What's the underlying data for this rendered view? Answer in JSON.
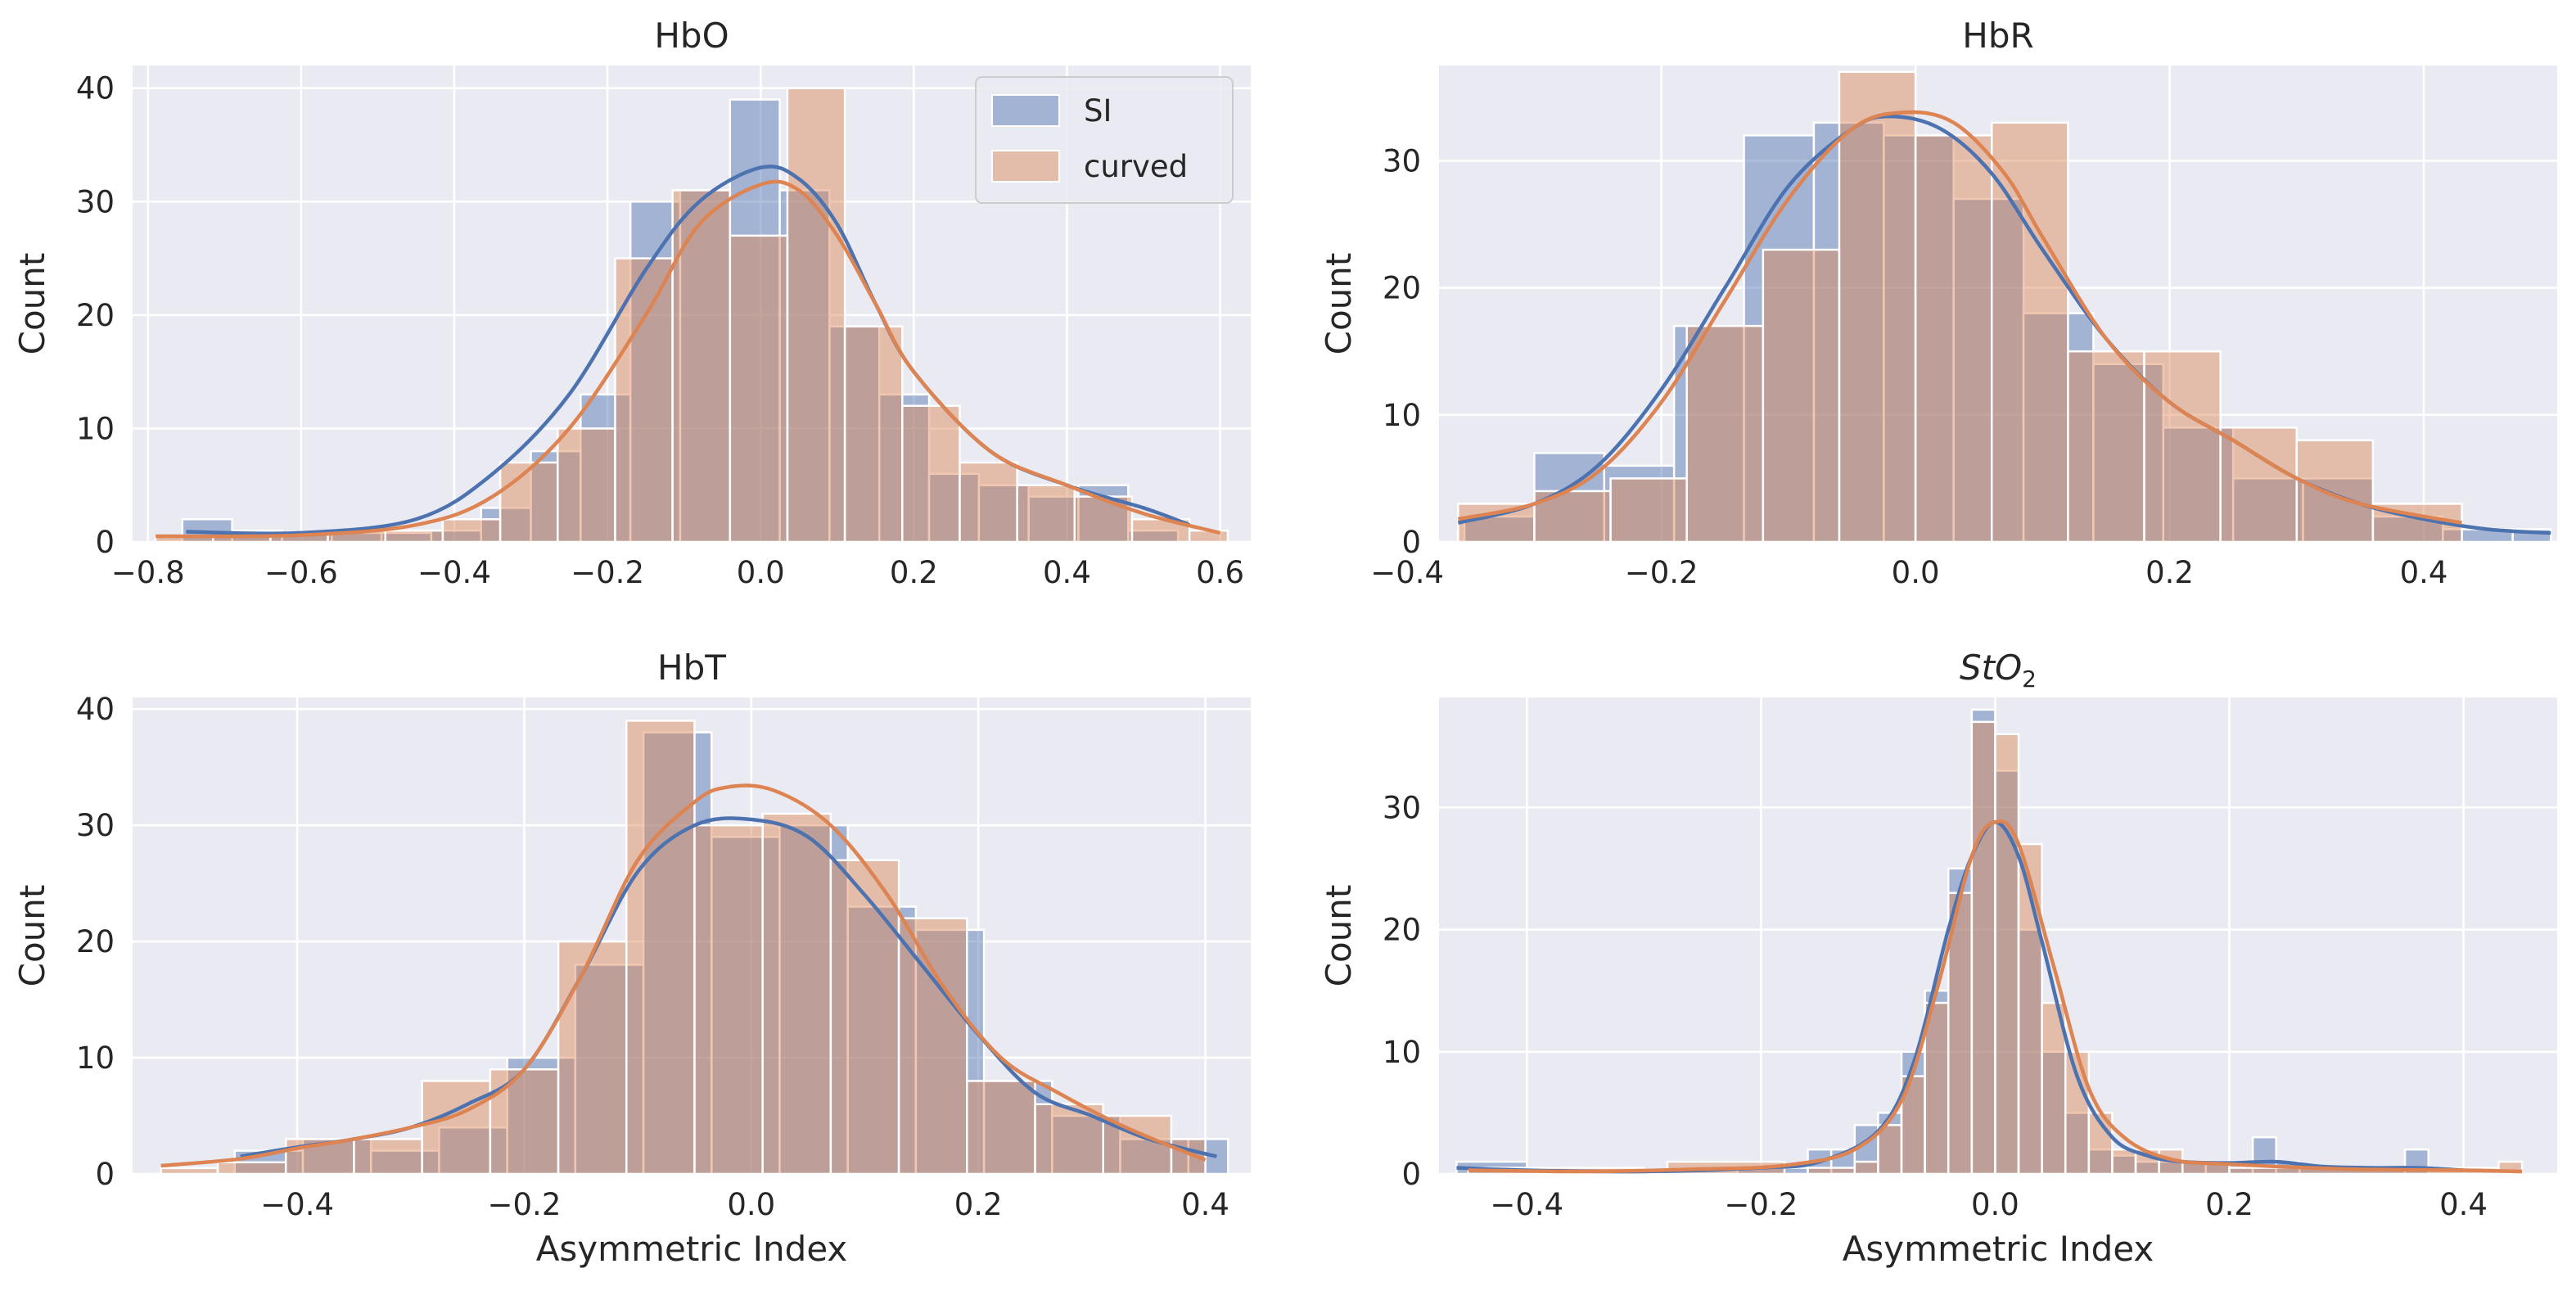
{
  "colors": {
    "si": "#4c72b0",
    "curved": "#dd8452",
    "background": "#eaeaf2",
    "grid": "#ffffff"
  },
  "legend": {
    "location": "upper-right",
    "entries": [
      "SI",
      "curved"
    ]
  },
  "chart_data": [
    {
      "type": "histogram",
      "title": "HbO",
      "xlabel": "",
      "ylabel": "Count",
      "xlim": [
        -0.82,
        0.64
      ],
      "ylim": [
        0,
        42
      ],
      "xticks": [
        -0.8,
        -0.6,
        -0.4,
        -0.2,
        0.0,
        0.2,
        0.4,
        0.6
      ],
      "xtick_labels": [
        "−0.8",
        "−0.6",
        "−0.4",
        "−0.2",
        "0.0",
        "0.2",
        "0.4",
        "0.6"
      ],
      "yticks": [
        0,
        10,
        20,
        30,
        40
      ],
      "ytick_labels": [
        "0",
        "10",
        "20",
        "30",
        "40"
      ],
      "series": [
        {
          "name": "SI",
          "bin_edges": [
            -0.755,
            -0.69,
            -0.625,
            -0.56,
            -0.495,
            -0.43,
            -0.365,
            -0.3,
            -0.235,
            -0.17,
            -0.105,
            -0.04,
            0.025,
            0.09,
            0.155,
            0.22,
            0.285,
            0.35,
            0.415,
            0.48,
            0.545
          ],
          "counts": [
            2,
            1,
            0.8,
            0.8,
            0.8,
            1,
            3,
            8,
            13,
            30,
            31,
            39,
            31,
            19,
            13,
            6,
            5,
            4,
            5,
            1
          ],
          "kde": {
            "x": [
              -0.75,
              -0.6,
              -0.45,
              -0.35,
              -0.25,
              -0.15,
              -0.08,
              0.0,
              0.05,
              0.1,
              0.15,
              0.2,
              0.3,
              0.4,
              0.5,
              0.56
            ],
            "y": [
              0.9,
              0.8,
              2,
              6,
              13,
              24,
              30,
              33,
              32,
              28,
              21,
              15,
              8,
              5,
              3,
              1.5
            ]
          }
        },
        {
          "name": "curved",
          "bin_edges": [
            -0.79,
            -0.715,
            -0.64,
            -0.565,
            -0.49,
            -0.415,
            -0.34,
            -0.265,
            -0.19,
            -0.115,
            -0.04,
            0.035,
            0.11,
            0.185,
            0.26,
            0.335,
            0.41,
            0.485,
            0.56,
            0.61
          ],
          "counts": [
            0.5,
            0.5,
            0.8,
            1,
            1,
            2,
            7,
            10,
            25,
            31,
            27,
            40,
            19,
            12,
            7,
            5,
            4,
            2,
            1
          ],
          "kde": {
            "x": [
              -0.79,
              -0.6,
              -0.45,
              -0.35,
              -0.25,
              -0.15,
              -0.08,
              0.0,
              0.05,
              0.1,
              0.15,
              0.2,
              0.3,
              0.4,
              0.5,
              0.6
            ],
            "y": [
              0.5,
              0.6,
              1.5,
              4,
              10,
              20,
              28,
              31.5,
              31,
              27,
              21,
              15,
              8,
              5,
              2.5,
              0.8
            ]
          }
        }
      ]
    },
    {
      "type": "histogram",
      "title": "HbR",
      "xlabel": "",
      "ylabel": "Count",
      "xlim": [
        -0.375,
        0.505
      ],
      "ylim": [
        0,
        37.5
      ],
      "xticks": [
        -0.4,
        -0.2,
        0.0,
        0.2,
        0.4
      ],
      "xtick_labels": [
        "−0.4",
        "−0.2",
        "0.0",
        "0.2",
        "0.4"
      ],
      "yticks": [
        0,
        10,
        20,
        30
      ],
      "ytick_labels": [
        "0",
        "10",
        "20",
        "30"
      ],
      "series": [
        {
          "name": "SI",
          "bin_edges": [
            -0.355,
            -0.3,
            -0.245,
            -0.19,
            -0.135,
            -0.08,
            -0.025,
            0.03,
            0.085,
            0.14,
            0.195,
            0.25,
            0.305,
            0.36,
            0.415,
            0.47,
            0.5
          ],
          "counts": [
            2,
            7,
            6,
            17,
            32,
            33,
            32,
            27,
            18,
            14,
            9,
            5,
            5,
            2,
            1,
            1
          ],
          "kde": {
            "x": [
              -0.36,
              -0.3,
              -0.25,
              -0.2,
              -0.15,
              -0.1,
              -0.05,
              -0.02,
              0.02,
              0.06,
              0.1,
              0.15,
              0.2,
              0.25,
              0.3,
              0.35,
              0.4,
              0.45,
              0.5
            ],
            "y": [
              1.5,
              3,
              6,
              12,
              20,
              28,
              32.5,
              33.5,
              32.5,
              29,
              23,
              16,
              11,
              8,
              5,
              3,
              1.8,
              1,
              0.7
            ]
          }
        },
        {
          "name": "curved",
          "bin_edges": [
            -0.36,
            -0.3,
            -0.24,
            -0.18,
            -0.12,
            -0.06,
            0.0,
            0.06,
            0.12,
            0.18,
            0.24,
            0.3,
            0.36,
            0.43
          ],
          "counts": [
            3,
            4,
            5,
            17,
            23,
            37,
            32,
            33,
            15,
            15,
            9,
            8,
            3
          ],
          "kde": {
            "x": [
              -0.36,
              -0.3,
              -0.25,
              -0.2,
              -0.15,
              -0.1,
              -0.05,
              -0.01,
              0.03,
              0.07,
              0.1,
              0.15,
              0.2,
              0.25,
              0.3,
              0.35,
              0.43
            ],
            "y": [
              1.8,
              3,
              5.5,
              11,
              19,
              27,
              32.5,
              33.8,
              33,
              29,
              24,
              16,
              11,
              8,
              5,
              3,
              1.5
            ]
          }
        }
      ]
    },
    {
      "type": "histogram",
      "title": "HbT",
      "xlabel": "Asymmetric Index",
      "ylabel": "Count",
      "xlim": [
        -0.545,
        0.44
      ],
      "ylim": [
        0,
        41
      ],
      "xticks": [
        -0.4,
        -0.2,
        0.0,
        0.2,
        0.4
      ],
      "xtick_labels": [
        "−0.4",
        "−0.2",
        "0.0",
        "0.2",
        "0.4"
      ],
      "yticks": [
        0,
        10,
        20,
        30,
        40
      ],
      "ytick_labels": [
        "0",
        "10",
        "20",
        "30",
        "40"
      ],
      "series": [
        {
          "name": "SI",
          "bin_edges": [
            -0.455,
            -0.395,
            -0.335,
            -0.275,
            -0.215,
            -0.155,
            -0.095,
            -0.035,
            0.025,
            0.085,
            0.145,
            0.205,
            0.265,
            0.325,
            0.385,
            0.42
          ],
          "counts": [
            2,
            3,
            2,
            4,
            10,
            18,
            38,
            29,
            30,
            23,
            21,
            8,
            5,
            3,
            3
          ],
          "kde": {
            "x": [
              -0.45,
              -0.4,
              -0.35,
              -0.3,
              -0.25,
              -0.2,
              -0.15,
              -0.1,
              -0.05,
              0.0,
              0.05,
              0.1,
              0.15,
              0.2,
              0.25,
              0.3,
              0.35,
              0.41
            ],
            "y": [
              1.5,
              2.3,
              3,
              4,
              6,
              9,
              17,
              26,
              30,
              30.5,
              29,
              24,
              18,
              12,
              7,
              5,
              3,
              1.5
            ]
          }
        },
        {
          "name": "curved",
          "bin_edges": [
            -0.52,
            -0.47,
            -0.41,
            -0.35,
            -0.29,
            -0.23,
            -0.17,
            -0.11,
            -0.05,
            0.01,
            0.07,
            0.13,
            0.19,
            0.25,
            0.31,
            0.37,
            0.4
          ],
          "counts": [
            0.5,
            1,
            3,
            3,
            8,
            9,
            20,
            39,
            30,
            31,
            27,
            22,
            8,
            6,
            5,
            3
          ],
          "kde": {
            "x": [
              -0.52,
              -0.45,
              -0.4,
              -0.35,
              -0.3,
              -0.25,
              -0.2,
              -0.15,
              -0.1,
              -0.05,
              -0.02,
              0.02,
              0.07,
              0.12,
              0.17,
              0.22,
              0.27,
              0.33,
              0.4
            ],
            "y": [
              0.7,
              1.3,
              2.2,
              3,
              4,
              5.5,
              9,
              17,
              27,
              32,
              33.3,
              33,
              30,
              24,
              16,
              10,
              7,
              4,
              1.2
            ]
          }
        }
      ]
    },
    {
      "type": "histogram",
      "title": "StO2",
      "title_base": "StO",
      "title_subscript": "2",
      "xlabel": "Asymmetric Index",
      "ylabel": "Count",
      "xlim": [
        -0.475,
        0.48
      ],
      "ylim": [
        0,
        39
      ],
      "xticks": [
        -0.4,
        -0.2,
        0.0,
        0.2,
        0.4
      ],
      "xtick_labels": [
        "−0.4",
        "−0.2",
        "0.0",
        "0.2",
        "0.4"
      ],
      "yticks": [
        0,
        10,
        20,
        30
      ],
      "ytick_labels": [
        "0",
        "10",
        "20",
        "30"
      ],
      "series": [
        {
          "name": "SI",
          "bin_edges": [
            -0.46,
            -0.4,
            -0.34,
            -0.28,
            -0.22,
            -0.16,
            -0.14,
            -0.12,
            -0.1,
            -0.08,
            -0.06,
            -0.04,
            -0.02,
            0.0,
            0.02,
            0.04,
            0.06,
            0.08,
            0.1,
            0.12,
            0.14,
            0.16,
            0.18,
            0.22,
            0.24,
            0.26,
            0.35,
            0.37
          ],
          "counts": [
            1,
            0,
            0,
            0,
            0.5,
            2,
            2,
            4,
            5,
            10,
            15,
            25,
            38,
            33,
            20,
            10,
            5,
            2,
            1.5,
            1,
            1,
            1,
            1,
            3,
            1,
            0.5,
            2
          ],
          "kde": {
            "x": [
              -0.46,
              -0.4,
              -0.3,
              -0.2,
              -0.15,
              -0.1,
              -0.07,
              -0.04,
              -0.02,
              0.0,
              0.02,
              0.04,
              0.07,
              0.1,
              0.13,
              0.16,
              0.2,
              0.24,
              0.28,
              0.32,
              0.36,
              0.4
            ],
            "y": [
              0.5,
              0.3,
              0.2,
              0.5,
              1,
              3.5,
              9,
              20,
              26,
              28.8,
              26,
              19,
              8,
              3,
              1.5,
              1,
              0.9,
              1,
              0.6,
              0.5,
              0.5,
              0.3
            ]
          }
        },
        {
          "name": "curved",
          "bin_edges": [
            -0.45,
            -0.3,
            -0.28,
            -0.18,
            -0.16,
            -0.12,
            -0.1,
            -0.08,
            -0.06,
            -0.04,
            -0.02,
            0.0,
            0.02,
            0.04,
            0.06,
            0.08,
            0.1,
            0.12,
            0.14,
            0.16,
            0.2,
            0.43,
            0.45
          ],
          "counts": [
            0.5,
            0,
            1,
            0,
            0.5,
            1,
            4,
            8,
            14,
            23,
            37,
            36,
            27,
            14,
            10,
            5,
            2,
            2,
            2,
            1,
            0.5,
            1
          ],
          "kde": {
            "x": [
              -0.45,
              -0.35,
              -0.25,
              -0.18,
              -0.12,
              -0.08,
              -0.05,
              -0.02,
              0.0,
              0.02,
              0.05,
              0.08,
              0.11,
              0.15,
              0.2,
              0.3,
              0.4,
              0.45
            ],
            "y": [
              0.3,
              0.2,
              0.4,
              0.7,
              2,
              6,
              15,
              26,
              28.8,
              27,
              17,
              7,
              3,
              1.2,
              0.8,
              0.4,
              0.3,
              0.2
            ]
          }
        }
      ]
    }
  ]
}
